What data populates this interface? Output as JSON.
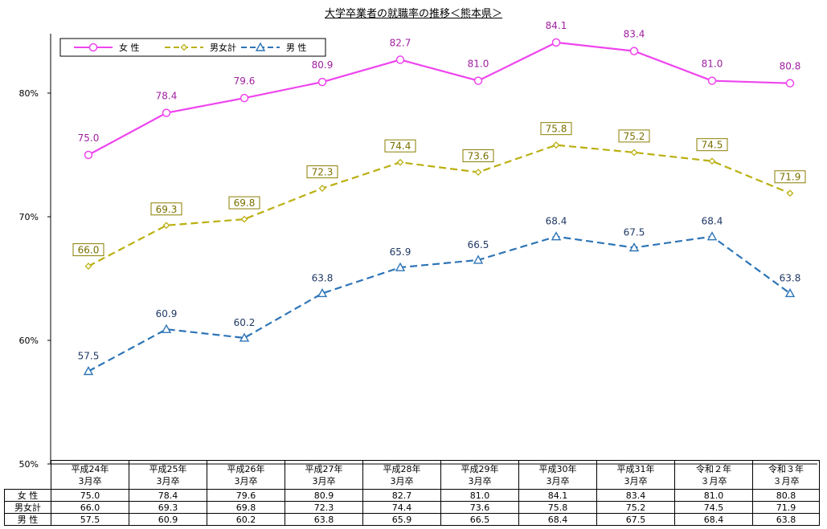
{
  "chart_data": {
    "type": "line",
    "title": "大学卒業者の就職率の推移＜熊本県＞",
    "categories": [
      "平成24年\n3月卒",
      "平成25年\n3月卒",
      "平成26年\n3月卒",
      "平成27年\n3月卒",
      "平成28年\n3月卒",
      "平成29年\n3月卒",
      "平成30年\n3月卒",
      "平成31年\n3月卒",
      "令和２年\n３月卒",
      "令和３年\n３月卒"
    ],
    "series": [
      {
        "name": "女 性",
        "color": "#ee44ee",
        "marker": "circle",
        "dash": "solid",
        "values": [
          75.0,
          78.4,
          79.6,
          80.9,
          82.7,
          81.0,
          84.1,
          83.4,
          81.0,
          80.8
        ],
        "labels": [
          "75.0",
          "78.4",
          "79.6",
          "80.9",
          "82.7",
          "81.0",
          "84.1",
          "83.4",
          "81.0",
          "80.8"
        ]
      },
      {
        "name": "男女計",
        "color": "#bbb011",
        "marker": "diamond",
        "dash": "dashed",
        "values": [
          66.0,
          69.3,
          69.8,
          72.3,
          74.4,
          73.6,
          75.8,
          75.2,
          74.5,
          71.9
        ],
        "labels": [
          "66.0",
          "69.3",
          "69.8",
          "72.3",
          "74.4",
          "73.6",
          "75.8",
          "75.2",
          "74.5",
          "71.9"
        ]
      },
      {
        "name": "男 性",
        "color": "#2e75b6",
        "marker": "triangle",
        "dash": "dashed",
        "values": [
          57.5,
          60.9,
          60.2,
          63.8,
          65.9,
          66.5,
          68.4,
          67.5,
          68.4,
          63.8
        ],
        "labels": [
          "57.5",
          "60.9",
          "60.2",
          "63.8",
          "65.9",
          "66.5",
          "68.4",
          "67.5",
          "68.4",
          "63.8"
        ]
      }
    ],
    "ylim": [
      50,
      85
    ],
    "yticks": [
      50,
      60,
      70,
      80
    ],
    "ytick_labels": [
      "50%",
      "60%",
      "70%",
      "80%"
    ],
    "legend_position": "top-left",
    "grid": false
  },
  "table": {
    "row_labels": [
      "女 性",
      "男女計",
      "男 性"
    ]
  }
}
